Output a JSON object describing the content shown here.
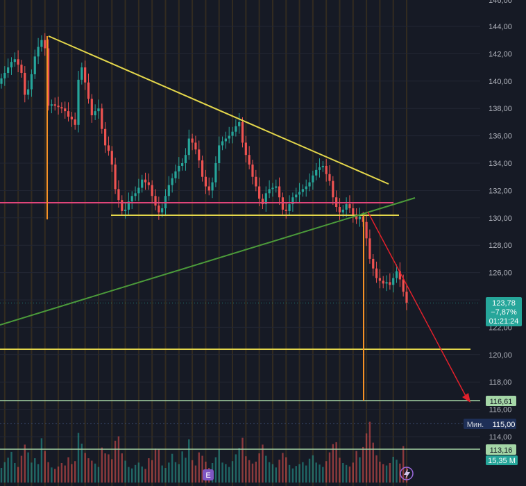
{
  "chart_data": {
    "type": "candlestick",
    "ylim": [
      111.0,
      145.0
    ],
    "y_ticks": [
      "144,00",
      "142,00",
      "140,00",
      "138,00",
      "136,00",
      "134,00",
      "132,00",
      "130,00",
      "128,00",
      "126,00",
      "124,00",
      "122,00",
      "120,00",
      "118,00",
      "116,00",
      "114,00"
    ],
    "y_tick_values": [
      144,
      142,
      140,
      138,
      136,
      134,
      132,
      130,
      128,
      126,
      124,
      122,
      120,
      118,
      116,
      114
    ],
    "top_partial_tick": "146,00",
    "price_tag": {
      "price": "123,78",
      "change": "−7,87%",
      "timer": "01:21:24",
      "value": 123.78,
      "color": "#26a69a"
    },
    "target_tag": {
      "label": "116,61",
      "value": 116.61,
      "color": "#a5d6a7"
    },
    "min_tag": {
      "label": "Мин.",
      "value_label": "115,00",
      "value": 115.0,
      "color": "#1e2f57"
    },
    "line_tag": {
      "label": "113,16",
      "value": 113.16,
      "color": "#a5d6a7"
    },
    "volume_tag": {
      "label": "15,35 M",
      "color": "#26a69a"
    },
    "event_badge": "E",
    "close_series": [
      140.2,
      140.6,
      141.0,
      141.4,
      141.6,
      141.2,
      140.6,
      139.0,
      139.4,
      140.5,
      141.8,
      142.5,
      143.0,
      142.4,
      138.2,
      138.3,
      138.2,
      138.1,
      138.0,
      137.8,
      137.4,
      137.2,
      136.8,
      140.1,
      141.0,
      139.9,
      138.7,
      137.5,
      137.8,
      138.0,
      136.5,
      135.3,
      134.9,
      133.9,
      132.1,
      131.3,
      130.5,
      130.6,
      131.2,
      131.6,
      131.8,
      132.2,
      132.8,
      132.6,
      132.4,
      131.6,
      130.9,
      130.4,
      130.7,
      131.6,
      132.4,
      132.9,
      133.4,
      133.8,
      134.0,
      134.6,
      135.8,
      135.5,
      135.0,
      134.2,
      133.0,
      132.3,
      132.0,
      132.6,
      134.0,
      135.3,
      135.6,
      135.8,
      136.0,
      136.3,
      136.7,
      137.0,
      135.5,
      134.6,
      133.9,
      133.0,
      132.3,
      131.4,
      131.0,
      131.8,
      132.1,
      132.2,
      132.3,
      131.5,
      130.6,
      130.5,
      131.0,
      131.5,
      131.7,
      131.9,
      132.1,
      132.3,
      132.6,
      133.1,
      133.5,
      133.7,
      133.8,
      133.2,
      132.7,
      131.5,
      130.8,
      130.4,
      130.6,
      131.0,
      130.7,
      130.2,
      129.9,
      130.1,
      129.7,
      128.5,
      127.0,
      126.3,
      125.6,
      125.4,
      125.2,
      125.3,
      125.1,
      125.6,
      126.1,
      125.5,
      124.6,
      123.8
    ],
    "volume_series": [
      3.0,
      4.2,
      5.1,
      6.3,
      4.0,
      3.2,
      5.5,
      7.8,
      6.2,
      4.1,
      5.0,
      3.8,
      9.1,
      6.5,
      4.2,
      3.1,
      2.8,
      3.3,
      4.0,
      3.5,
      5.2,
      3.8,
      4.4,
      10.2,
      8.0,
      6.1,
      5.0,
      4.5,
      3.9,
      3.2,
      7.2,
      6.0,
      5.8,
      4.8,
      8.6,
      9.5,
      6.0,
      4.5,
      3.2,
      2.9,
      3.6,
      4.1,
      3.3,
      2.8,
      5.0,
      4.6,
      7.0,
      6.8,
      3.5,
      3.0,
      4.1,
      5.9,
      4.2,
      3.8,
      6.4,
      5.1,
      8.9,
      4.6,
      3.5,
      6.2,
      5.5,
      4.3,
      3.0,
      4.0,
      5.2,
      6.8,
      4.1,
      3.8,
      3.2,
      4.4,
      5.8,
      7.1,
      9.2,
      5.4,
      4.6,
      3.9,
      4.3,
      6.0,
      7.8,
      5.5,
      4.2,
      3.8,
      3.1,
      4.7,
      6.1,
      5.2,
      3.6,
      2.9,
      3.4,
      3.8,
      4.2,
      3.5,
      4.9,
      5.6,
      4.1,
      3.7,
      3.2,
      4.4,
      6.2,
      7.9,
      8.3,
      5.1,
      4.0,
      3.6,
      3.3,
      4.1,
      6.5,
      5.2,
      7.3,
      10.1,
      12.5,
      8.2,
      5.6,
      4.3,
      3.8,
      3.5,
      4.0,
      5.3,
      4.7,
      3.9,
      7.5,
      3.2
    ]
  },
  "colors": {
    "up": "#26a69a",
    "down": "#ef5350",
    "grid": "#232734",
    "axis_text": "#b2b5be",
    "background": "#161a25",
    "highlight_bar": "#4a3a1e",
    "triangle_line": "#e4d74b",
    "support_red": "#e0457a",
    "trend_green": "#4b9a3a",
    "target_line": "#a5d6a7",
    "marker_orange": "#f79225",
    "arrow_red": "#e3202b"
  }
}
